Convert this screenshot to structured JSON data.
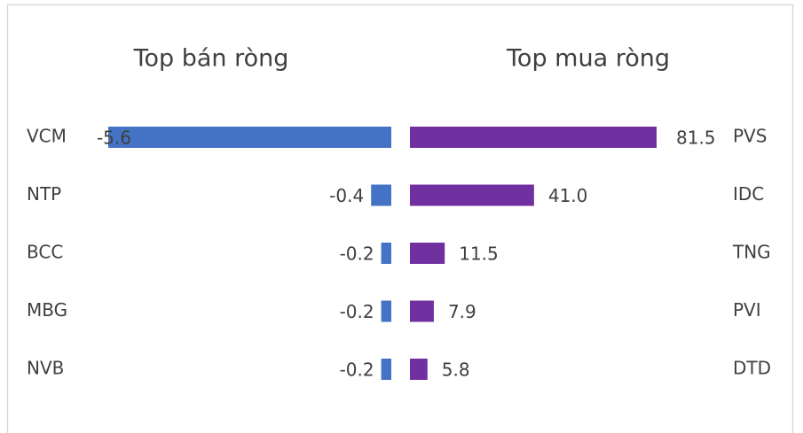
{
  "chart_data": [
    {
      "type": "hbar-left",
      "title": "Top bán ròng",
      "categories": [
        "VCM",
        "NTP",
        "BCC",
        "MBG",
        "NVB"
      ],
      "values": [
        -5.6,
        -0.4,
        -0.2,
        -0.2,
        -0.2
      ],
      "color": "#4472c4"
    },
    {
      "type": "hbar-right",
      "title": "Top mua ròng",
      "categories": [
        "PVS",
        "IDC",
        "TNG",
        "PVI",
        "DTD"
      ],
      "values": [
        81.5,
        41.0,
        11.5,
        7.9,
        5.8
      ],
      "value_labels": [
        "81.5",
        "41.0",
        "11.5",
        "7.9",
        "5.8"
      ],
      "color": "#7030a0"
    }
  ]
}
